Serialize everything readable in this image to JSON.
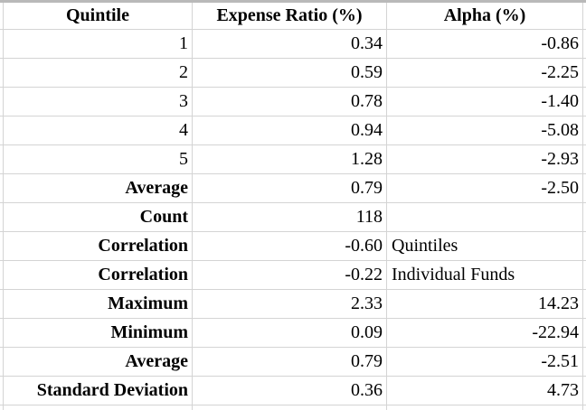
{
  "app": {
    "type": "spreadsheet-table",
    "top_border_color": "#b9b9b9",
    "gridline_color": "#d4d4d4",
    "text_color": "#000000",
    "background_color": "#ffffff"
  },
  "clipped_left_column": {
    "fragment_text": ":"
  },
  "table": {
    "headers": {
      "quintile": "Quintile",
      "expense_ratio": "Expense Ratio (%)",
      "alpha": "Alpha (%)"
    },
    "rows": [
      {
        "label": "1",
        "expense": "0.34",
        "alpha": "-0.86"
      },
      {
        "label": "2",
        "expense": "0.59",
        "alpha": "-2.25"
      },
      {
        "label": "3",
        "expense": "0.78",
        "alpha": "-1.40"
      },
      {
        "label": "4",
        "expense": "0.94",
        "alpha": "-5.08"
      },
      {
        "label": "5",
        "expense": "1.28",
        "alpha": "-2.93"
      },
      {
        "label": "Average",
        "expense": "0.79",
        "alpha": "-2.50"
      },
      {
        "label": "Count",
        "expense": "118",
        "alpha": ""
      },
      {
        "label": "Correlation",
        "expense": "-0.60",
        "alpha": "Quintiles"
      },
      {
        "label": "Correlation",
        "expense": "-0.22",
        "alpha": "Individual Funds"
      },
      {
        "label": "Maximum",
        "expense": "2.33",
        "alpha": "14.23"
      },
      {
        "label": "Minimum",
        "expense": "0.09",
        "alpha": "-22.94"
      },
      {
        "label": "Average",
        "expense": "0.79",
        "alpha": "-2.51"
      },
      {
        "label": "Standard Deviation",
        "expense": "0.36",
        "alpha": "4.73"
      }
    ]
  }
}
